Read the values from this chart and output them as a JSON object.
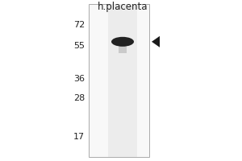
{
  "background_color": "#ffffff",
  "outer_bg": "#ffffff",
  "gel_bg_color": "#f5f5f5",
  "gel_lane_color": "#e0e0e0",
  "lane_label": "h.placenta",
  "marker_labels": [
    72,
    55,
    36,
    28,
    17
  ],
  "title_fontsize": 8.5,
  "marker_fontsize": 8,
  "arrow_color": "#1a1a1a",
  "band_color": "#111111",
  "gel_border_color": "#aaaaaa",
  "text_color": "#222222"
}
